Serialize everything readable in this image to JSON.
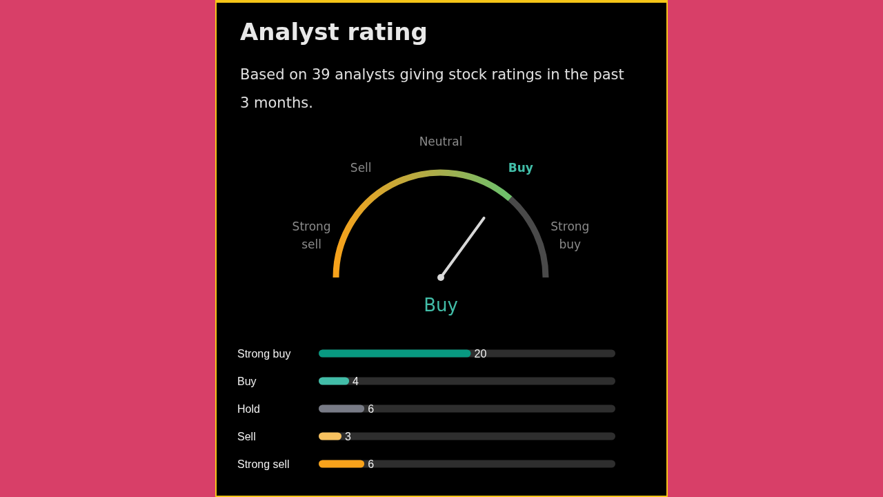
{
  "chart_data": [
    {
      "type": "other",
      "title": "Analyst rating",
      "subtitle": "Based on 39 analysts giving stock ratings in the past 3 months.",
      "categories": [
        "Strong sell",
        "Sell",
        "Neutral",
        "Buy",
        "Strong buy"
      ],
      "needle": "Buy"
    },
    {
      "type": "bar",
      "orientation": "horizontal",
      "categories": [
        "Strong buy",
        "Buy",
        "Hold",
        "Sell",
        "Strong sell"
      ],
      "values": [
        20,
        4,
        6,
        3,
        6
      ],
      "colors": [
        "#089981",
        "#42bda8",
        "#787b86",
        "#f7c15f",
        "#f7a21b"
      ],
      "xlim": [
        0,
        39
      ],
      "data_labels": true,
      "tick_labels": "y"
    }
  ]
}
